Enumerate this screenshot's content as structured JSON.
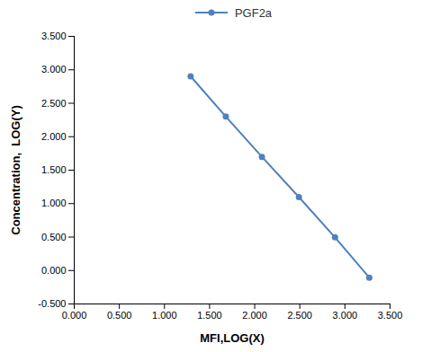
{
  "chart_data": {
    "type": "line",
    "x_label": "MFI,LOG(X)",
    "y_label": "Concentration,  LOG(Y)",
    "series": [
      {
        "name": "PGF2a",
        "color": "#4f81bd",
        "marker": "circle",
        "line_style": "solid",
        "x": [
          1.29,
          1.68,
          2.08,
          2.49,
          2.89,
          3.27
        ],
        "values": [
          2.903,
          2.301,
          1.699,
          1.097,
          0.495,
          -0.107
        ]
      }
    ],
    "xlim": [
      0,
      3.5
    ],
    "xticks": [
      {
        "value": 0,
        "label": "0.000"
      },
      {
        "value": 0.5,
        "label": "0.500"
      },
      {
        "value": 1,
        "label": "1.000"
      },
      {
        "value": 1.5,
        "label": "1.500"
      },
      {
        "value": 2,
        "label": "2.000"
      },
      {
        "value": 2.5,
        "label": "2.500"
      },
      {
        "value": 3,
        "label": "3.000"
      },
      {
        "value": 3.5,
        "label": "3.500"
      }
    ],
    "ylim": [
      -0.5,
      3.5
    ],
    "yticks": [
      {
        "value": -0.5,
        "label": "-0.500"
      },
      {
        "value": 0,
        "label": "0.000"
      },
      {
        "value": 0.5,
        "label": "0.500"
      },
      {
        "value": 1,
        "label": "1.000"
      },
      {
        "value": 1.5,
        "label": "1.500"
      },
      {
        "value": 2,
        "label": "2.000"
      },
      {
        "value": 2.5,
        "label": "2.500"
      },
      {
        "value": 3,
        "label": "3.000"
      },
      {
        "value": 3.5,
        "label": "3.500"
      }
    ],
    "grid": false,
    "legend": "top"
  }
}
